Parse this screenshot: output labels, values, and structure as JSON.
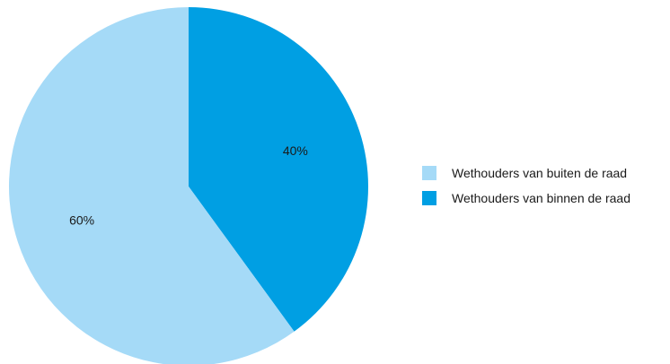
{
  "chart_data": {
    "type": "pie",
    "title": "",
    "legend_position": "right",
    "slices": [
      {
        "name": "Wethouders van binnen de raad",
        "value": 40,
        "label": "40%",
        "color": "#009fe3"
      },
      {
        "name": "Wethouders van buiten de raad",
        "value": 60,
        "label": "60%",
        "color": "#a5daf7"
      }
    ],
    "legend": [
      {
        "label": "Wethouders van buiten de raad",
        "color": "#a5daf7"
      },
      {
        "label": "Wethouders van binnen de raad",
        "color": "#009fe3"
      }
    ]
  }
}
